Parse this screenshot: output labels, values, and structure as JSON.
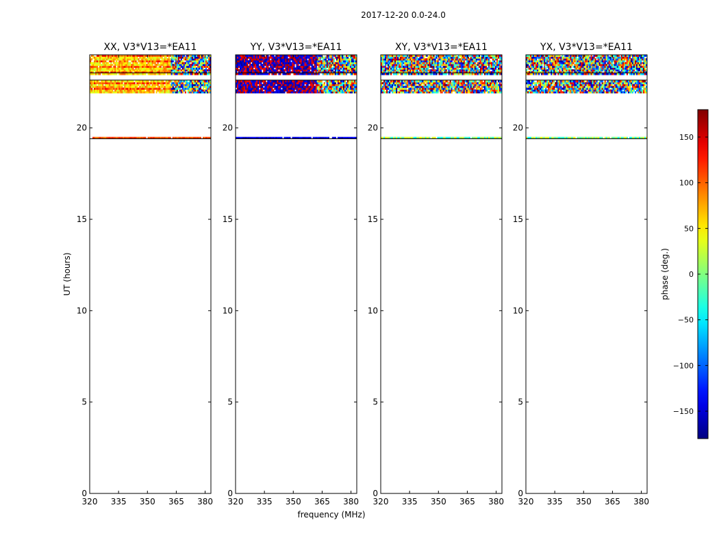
{
  "figure": {
    "suptitle": "2017-12-20 0.0-24.0"
  },
  "chart_data": [
    {
      "type": "heatmap",
      "title": "XX, V3*V13=*EA11",
      "xlabel": "",
      "ylabel": "UT (hours)",
      "xlim": [
        320,
        383
      ],
      "ylim": [
        0,
        24
      ],
      "xticks": [
        320,
        335,
        350,
        365,
        380
      ],
      "yticks": [
        0,
        5,
        10,
        15,
        20
      ],
      "data_rows_ut_hours": [
        19.45,
        21.95,
        22.05,
        22.15,
        22.25,
        22.35,
        22.45,
        22.55,
        22.95,
        23.05,
        23.15,
        23.25,
        23.35,
        23.45,
        23.55,
        23.65,
        23.75,
        23.85,
        23.95
      ],
      "phase_pattern": "structured: phase near +40 to +100 deg below ~362 MHz, scattered above",
      "colormap": "jet"
    },
    {
      "type": "heatmap",
      "title": "YY, V3*V13=*EA11",
      "xlabel": "frequency (MHz)",
      "ylabel": "",
      "xlim": [
        320,
        383
      ],
      "ylim": [
        0,
        24
      ],
      "xticks": [
        320,
        335,
        350,
        365,
        380
      ],
      "yticks": [
        0,
        5,
        10,
        15,
        20
      ],
      "data_rows_ut_hours": [
        19.45,
        21.95,
        22.05,
        22.15,
        22.25,
        22.35,
        22.45,
        22.55,
        22.95,
        23.05,
        23.15,
        23.25,
        23.35,
        23.45,
        23.55,
        23.65,
        23.75,
        23.85,
        23.95
      ],
      "phase_pattern": "structured: phase near -180/+180 deg below ~362 MHz, scattered above",
      "colormap": "jet"
    },
    {
      "type": "heatmap",
      "title": "XY, V3*V13=*EA11",
      "xlabel": "",
      "ylabel": "",
      "xlim": [
        320,
        383
      ],
      "ylim": [
        0,
        24
      ],
      "xticks": [
        320,
        335,
        350,
        365,
        380
      ],
      "yticks": [
        0,
        5,
        10,
        15,
        20
      ],
      "data_rows_ut_hours": [
        19.45,
        21.95,
        22.05,
        22.15,
        22.25,
        22.35,
        22.45,
        22.55,
        22.95,
        23.05,
        23.15,
        23.25,
        23.35,
        23.45,
        23.55,
        23.65,
        23.75,
        23.85,
        23.95
      ],
      "phase_pattern": "random noise across all phases",
      "colormap": "jet"
    },
    {
      "type": "heatmap",
      "title": "YX, V3*V13=*EA11",
      "xlabel": "",
      "ylabel": "",
      "xlim": [
        320,
        383
      ],
      "ylim": [
        0,
        24
      ],
      "xticks": [
        320,
        335,
        350,
        365,
        380
      ],
      "yticks": [
        0,
        5,
        10,
        15,
        20
      ],
      "data_rows_ut_hours": [
        19.45,
        21.95,
        22.05,
        22.15,
        22.25,
        22.35,
        22.45,
        22.55,
        22.95,
        23.05,
        23.15,
        23.25,
        23.35,
        23.45,
        23.55,
        23.65,
        23.75,
        23.85,
        23.95
      ],
      "phase_pattern": "random noise across all phases",
      "colormap": "jet"
    }
  ],
  "colorbar": {
    "label": "phase (deg.)",
    "range": [
      -180,
      180
    ],
    "ticks": [
      -150,
      -100,
      -50,
      0,
      50,
      100,
      150
    ],
    "tick_labels": [
      "−150",
      "−100",
      "−50",
      "0",
      "50",
      "100",
      "150"
    ],
    "colormap": "jet"
  }
}
